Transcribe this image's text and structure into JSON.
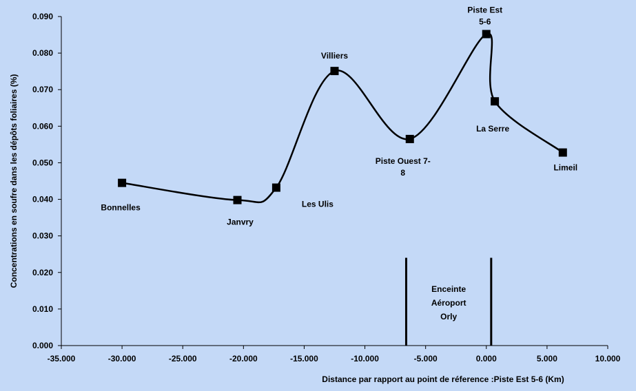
{
  "colors": {
    "background": "#c4d9f7",
    "line": "#000000",
    "marker": "#000000"
  },
  "chart_data": {
    "type": "line",
    "title": "",
    "xlabel": "Distance par rapport au point de réference :Piste Est 5-6 (Km)",
    "ylabel": "Concentrations en soufre dans les dépôts foliaires (%)",
    "xlim": [
      -35,
      10
    ],
    "ylim": [
      0,
      0.09
    ],
    "x_ticks": [
      -35,
      -30,
      -25,
      -20,
      -15,
      -10,
      -5,
      0,
      5,
      10
    ],
    "x_tick_labels": [
      "-35.000",
      "-30.000",
      "-25.000",
      "-20.000",
      "-15.000",
      "-10.000",
      "-5.000",
      "0.000",
      "5.000",
      "10.000"
    ],
    "y_ticks": [
      0,
      0.01,
      0.02,
      0.03,
      0.04,
      0.05,
      0.06,
      0.07,
      0.08,
      0.09
    ],
    "y_tick_labels": [
      "0.000",
      "0.010",
      "0.020",
      "0.030",
      "0.040",
      "0.050",
      "0.060",
      "0.070",
      "0.080",
      "0.090"
    ],
    "grid": false,
    "smooth": true,
    "series": [
      {
        "points": [
          {
            "label": "Bonnelles",
            "x": -30.0,
            "y": 0.0445
          },
          {
            "label": "Janvry",
            "x": -20.5,
            "y": 0.0398
          },
          {
            "label": "Les Ulis",
            "x": -17.3,
            "y": 0.0432
          },
          {
            "label": "Villiers",
            "x": -12.5,
            "y": 0.0751
          },
          {
            "label": "Piste Ouest 7-8",
            "x": -6.3,
            "y": 0.0565
          },
          {
            "label": "Piste Est 5-6",
            "x": 0.0,
            "y": 0.0852
          },
          {
            "label": "La Serre",
            "x": 0.7,
            "y": 0.0668
          },
          {
            "label": "Limeil",
            "x": 6.3,
            "y": 0.0528
          }
        ]
      }
    ],
    "zone": {
      "label_lines": [
        "Enceinte",
        "Aéroport",
        "Orly"
      ],
      "x_start": -6.6,
      "x_end": 0.4,
      "y_top": 0.024
    }
  }
}
